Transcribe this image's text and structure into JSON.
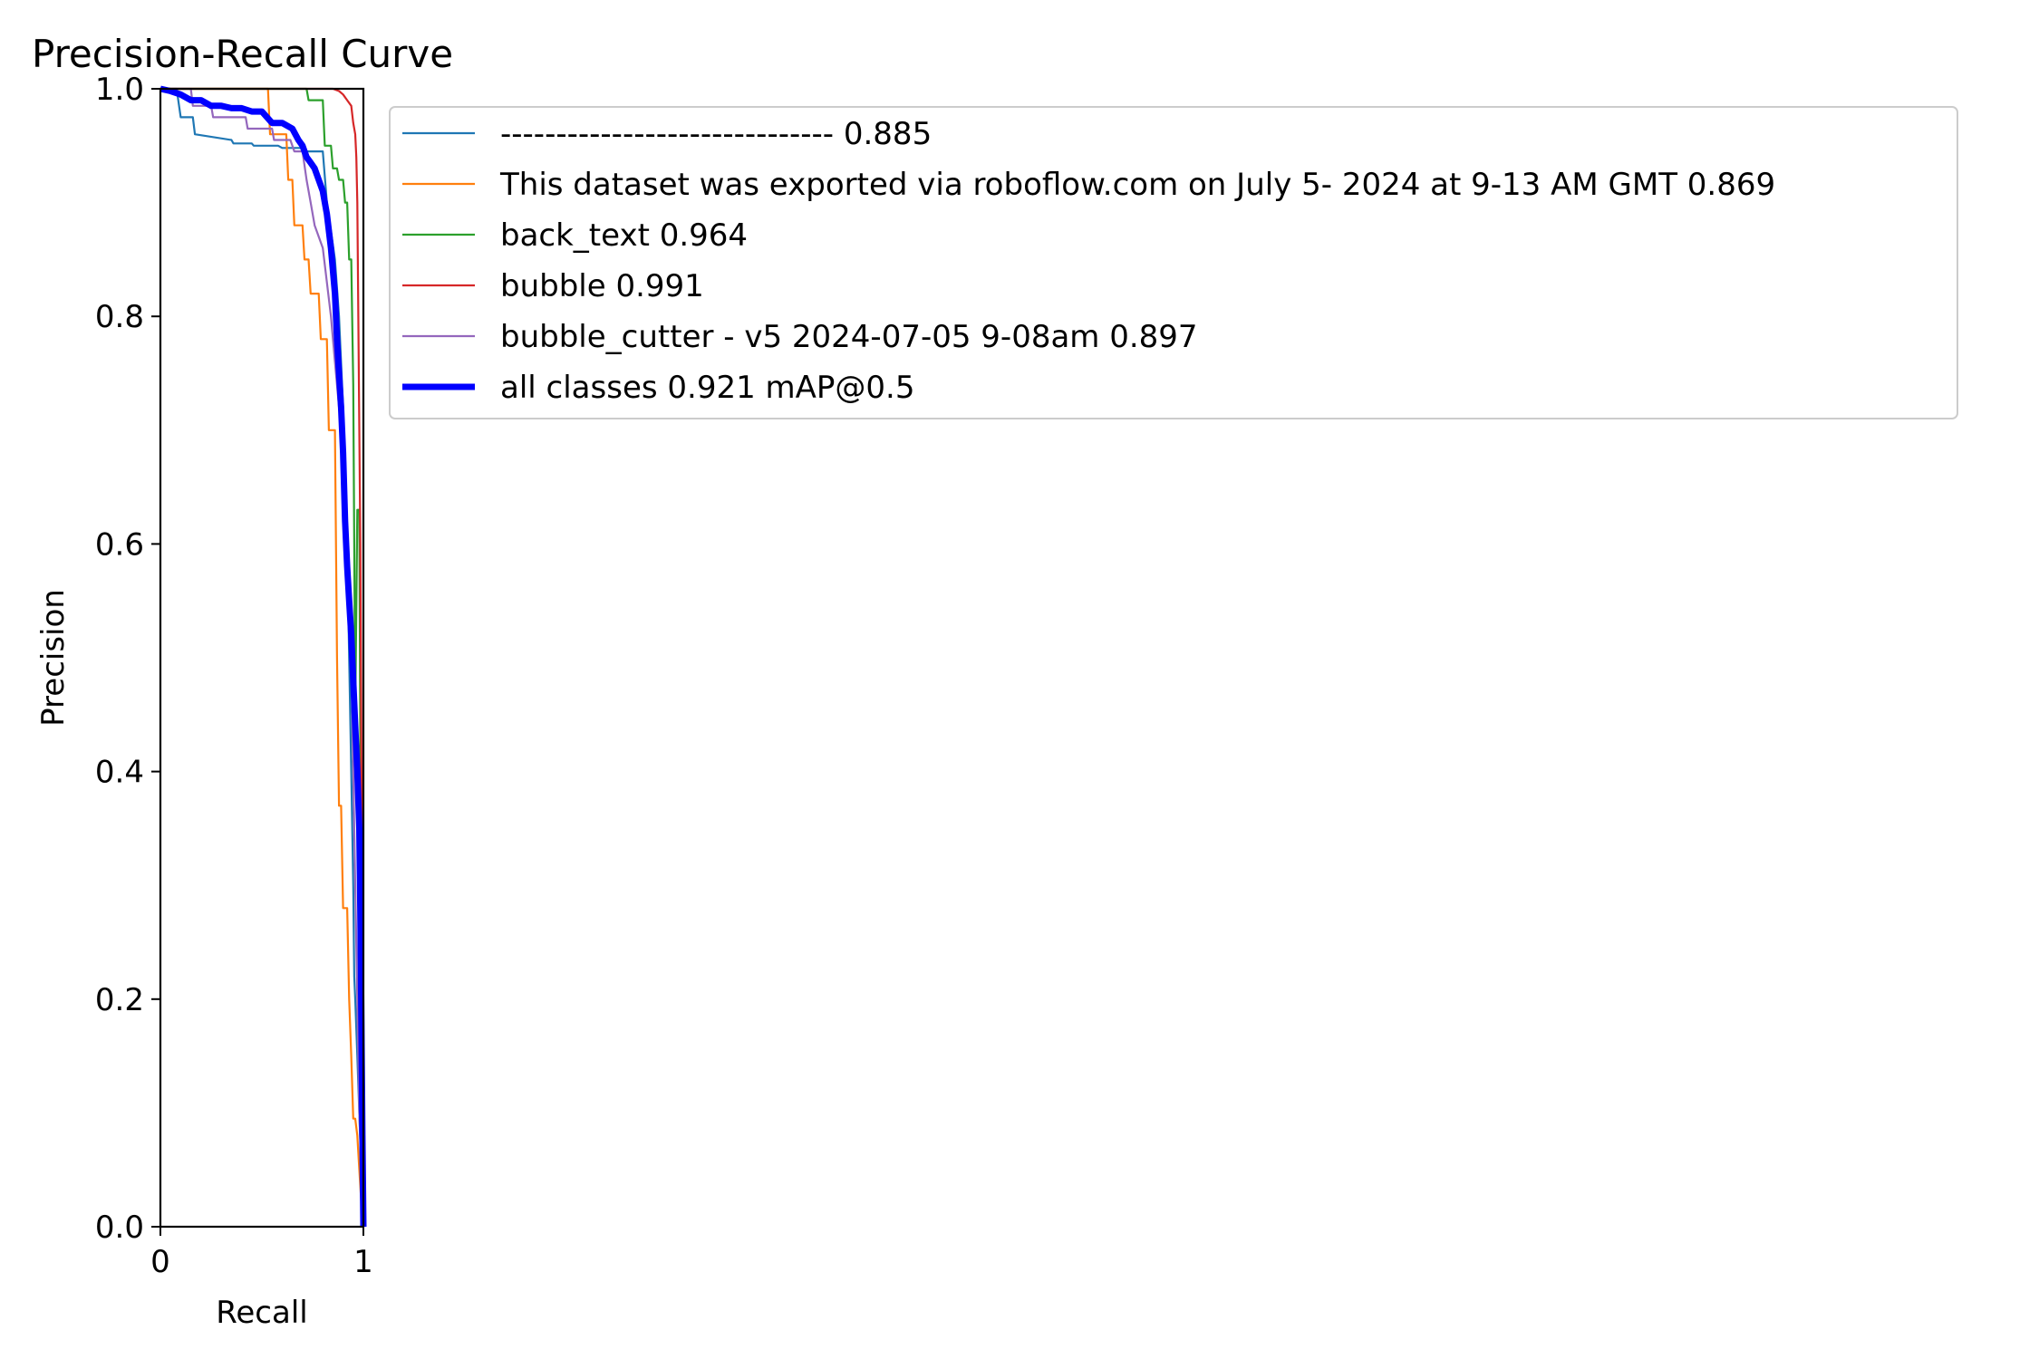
{
  "chart_data": {
    "type": "line",
    "title": "Precision-Recall Curve",
    "xlabel": "Recall",
    "ylabel": "Precision",
    "xlim": [
      0,
      1
    ],
    "ylim": [
      0,
      1
    ],
    "x_ticks": [
      "0",
      "1"
    ],
    "y_ticks": [
      "0.0",
      "0.2",
      "0.4",
      "0.6",
      "0.8",
      "1.0"
    ],
    "grid": false,
    "legend_position": "outside-right-top",
    "series": [
      {
        "name": "------------------------------ 0.885",
        "color": "#1f77b4",
        "width": "thin",
        "x": [
          0.0,
          0.08,
          0.1,
          0.16,
          0.17,
          0.35,
          0.36,
          0.45,
          0.46,
          0.58,
          0.6,
          0.7,
          0.72,
          0.8,
          0.82,
          0.86,
          0.88,
          0.9,
          0.92,
          0.93,
          0.94,
          0.95,
          0.955,
          0.96,
          0.97,
          0.98,
          0.99,
          1.0
        ],
        "y": [
          1.0,
          1.0,
          0.975,
          0.975,
          0.96,
          0.955,
          0.952,
          0.952,
          0.95,
          0.95,
          0.948,
          0.948,
          0.945,
          0.945,
          0.9,
          0.85,
          0.8,
          0.72,
          0.6,
          0.5,
          0.4,
          0.3,
          0.22,
          0.2,
          0.15,
          0.1,
          0.05,
          0.0
        ]
      },
      {
        "name": "This dataset was exported via roboflow.com on July 5- 2024 at 9-13 AM GMT 0.869",
        "color": "#ff7f0e",
        "width": "thin",
        "x": [
          0.0,
          0.53,
          0.54,
          0.62,
          0.63,
          0.65,
          0.66,
          0.7,
          0.71,
          0.73,
          0.74,
          0.78,
          0.79,
          0.82,
          0.83,
          0.86,
          0.87,
          0.88,
          0.89,
          0.9,
          0.92,
          0.93,
          0.94,
          0.95,
          0.96,
          0.97,
          0.98,
          0.99,
          1.0
        ],
        "y": [
          1.0,
          1.0,
          0.96,
          0.96,
          0.92,
          0.92,
          0.88,
          0.88,
          0.85,
          0.85,
          0.82,
          0.82,
          0.78,
          0.78,
          0.7,
          0.7,
          0.5,
          0.37,
          0.37,
          0.28,
          0.28,
          0.2,
          0.15,
          0.095,
          0.095,
          0.08,
          0.05,
          0.02,
          0.0
        ]
      },
      {
        "name": "back_text 0.964",
        "color": "#2ca02c",
        "width": "thin",
        "x": [
          0.0,
          0.72,
          0.73,
          0.8,
          0.81,
          0.84,
          0.85,
          0.87,
          0.88,
          0.9,
          0.91,
          0.92,
          0.93,
          0.94,
          0.95,
          0.955,
          0.96,
          0.97,
          0.98,
          0.99,
          1.0
        ],
        "y": [
          1.0,
          1.0,
          0.99,
          0.99,
          0.95,
          0.95,
          0.93,
          0.93,
          0.92,
          0.92,
          0.9,
          0.9,
          0.85,
          0.85,
          0.74,
          0.6,
          0.45,
          0.63,
          0.63,
          0.2,
          0.0
        ]
      },
      {
        "name": "bubble 0.991",
        "color": "#d62728",
        "width": "thin",
        "x": [
          0.0,
          0.85,
          0.88,
          0.9,
          0.92,
          0.94,
          0.95,
          0.96,
          0.965,
          0.97,
          0.975,
          0.98,
          0.985,
          0.99,
          0.995,
          1.0
        ],
        "y": [
          1.0,
          1.0,
          0.998,
          0.995,
          0.99,
          0.985,
          0.97,
          0.96,
          0.94,
          0.9,
          0.8,
          0.7,
          0.6,
          0.4,
          0.15,
          0.0
        ]
      },
      {
        "name": "bubble_cutter - v5 2024-07-05 9-08am 0.897",
        "color": "#9467bd",
        "width": "thin",
        "x": [
          0.0,
          0.15,
          0.16,
          0.25,
          0.26,
          0.42,
          0.43,
          0.55,
          0.56,
          0.64,
          0.66,
          0.7,
          0.72,
          0.74,
          0.76,
          0.8,
          0.82,
          0.84,
          0.86,
          0.88,
          0.9,
          0.92,
          0.93,
          0.94,
          0.95,
          0.96,
          0.97,
          0.98,
          0.99,
          1.0
        ],
        "y": [
          1.0,
          1.0,
          0.985,
          0.985,
          0.975,
          0.975,
          0.965,
          0.965,
          0.955,
          0.955,
          0.945,
          0.945,
          0.92,
          0.9,
          0.88,
          0.86,
          0.83,
          0.8,
          0.76,
          0.72,
          0.69,
          0.6,
          0.55,
          0.5,
          0.4,
          0.3,
          0.2,
          0.1,
          0.05,
          0.0
        ]
      },
      {
        "name": "all classes 0.921 mAP@0.5",
        "color": "#0000ff",
        "width": "thick",
        "x": [
          0.0,
          0.05,
          0.1,
          0.15,
          0.2,
          0.25,
          0.3,
          0.35,
          0.4,
          0.45,
          0.5,
          0.55,
          0.6,
          0.65,
          0.68,
          0.7,
          0.72,
          0.74,
          0.76,
          0.78,
          0.8,
          0.82,
          0.84,
          0.86,
          0.87,
          0.88,
          0.89,
          0.9,
          0.91,
          0.92,
          0.93,
          0.94,
          0.95,
          0.96,
          0.97,
          0.98,
          0.985,
          0.99,
          0.995,
          1.0
        ],
        "y": [
          1.0,
          0.998,
          0.995,
          0.99,
          0.99,
          0.985,
          0.985,
          0.983,
          0.983,
          0.98,
          0.98,
          0.97,
          0.97,
          0.965,
          0.955,
          0.95,
          0.94,
          0.935,
          0.93,
          0.92,
          0.91,
          0.89,
          0.86,
          0.82,
          0.78,
          0.75,
          0.72,
          0.68,
          0.62,
          0.58,
          0.55,
          0.52,
          0.48,
          0.44,
          0.4,
          0.35,
          0.28,
          0.18,
          0.08,
          0.0
        ]
      }
    ]
  }
}
